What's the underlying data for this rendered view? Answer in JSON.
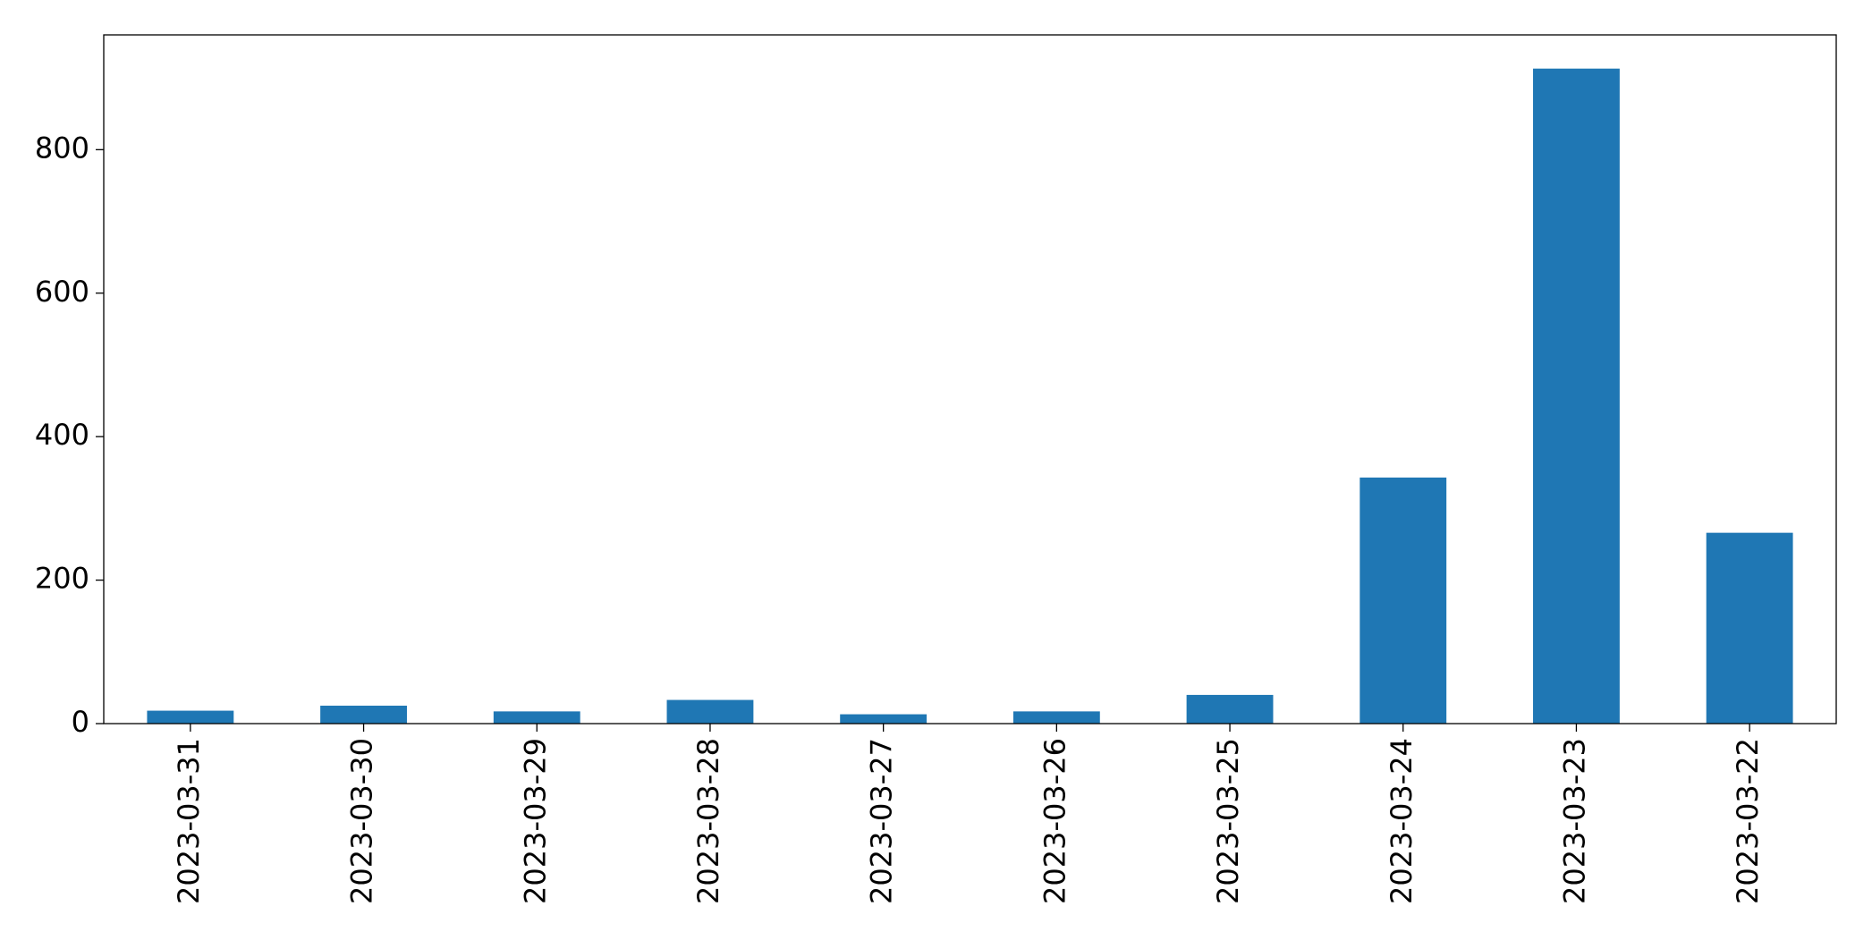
{
  "chart_data": {
    "type": "bar",
    "categories": [
      "2023-03-31",
      "2023-03-30",
      "2023-03-29",
      "2023-03-28",
      "2023-03-27",
      "2023-03-26",
      "2023-03-25",
      "2023-03-24",
      "2023-03-23",
      "2023-03-22"
    ],
    "values": [
      18,
      25,
      17,
      33,
      13,
      17,
      40,
      343,
      913,
      266
    ],
    "color": "#1f77b4",
    "ylim": [
      0,
      960
    ],
    "yticks": [
      0,
      200,
      400,
      600,
      800
    ],
    "grid": false
  }
}
